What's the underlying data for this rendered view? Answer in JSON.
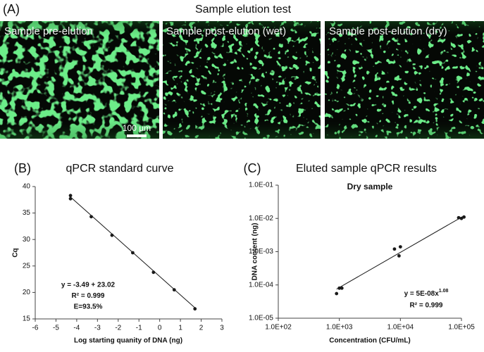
{
  "panel_a": {
    "label": "(A)",
    "title": "Sample elution test",
    "images": [
      "Sample pre-elution",
      "Sample post-elution (wet)",
      "Sample post-elution (dry)"
    ],
    "scale_bar": "100 µm"
  },
  "chart_data": [
    {
      "type": "scatter",
      "panel_label": "(B)",
      "title": "qPCR standard curve",
      "xlabel": "Log starting quanity of DNA (ng)",
      "ylabel": "Cq",
      "x": [
        -4.3,
        -4.3,
        -3.3,
        -2.3,
        -1.3,
        -0.3,
        0.7,
        1.7
      ],
      "values": [
        38.3,
        37.7,
        34.3,
        30.8,
        27.5,
        23.8,
        20.5,
        16.9
      ],
      "color": "#1a1a1a",
      "fit": {
        "x": [
          -4.3,
          1.7
        ],
        "values": [
          38.03,
          17.09
        ]
      },
      "xlim": [
        -6,
        3
      ],
      "xticks": [
        -6,
        -5,
        -4,
        -3,
        -2,
        -1,
        0,
        1,
        2,
        3
      ],
      "ylim": [
        15,
        40
      ],
      "yticks": [
        15,
        20,
        25,
        30,
        35,
        40
      ],
      "log_x": false,
      "log_y": false,
      "grid": false,
      "annotations": [
        "y = -3.49 + 23.02",
        "R² = 0.999",
        "E=93.5%"
      ]
    },
    {
      "type": "scatter",
      "panel_label": "(C)",
      "title": "Eluted sample qPCR results",
      "subtitle": "Dry sample",
      "xlabel": "Concentration (CFU/mL)",
      "ylabel": "DNA content (ng)",
      "x": [
        900,
        1000,
        1100,
        8000,
        9500,
        10000,
        90000,
        100000,
        110000
      ],
      "values": [
        5.5e-05,
        8e-05,
        8e-05,
        0.0012,
        0.00075,
        0.0014,
        0.0105,
        0.01,
        0.011
      ],
      "color": "#1a1a1a",
      "fit": {
        "x": [
          900,
          110000
        ],
        "values": [
          7.5e-05,
          0.012
        ]
      },
      "xlim": [
        100,
        100000
      ],
      "xticks": [
        {
          "value": 100,
          "label": "1.0E+02"
        },
        {
          "value": 1000,
          "label": "1.0E+03"
        },
        {
          "value": 10000,
          "label": "1.0E+04"
        },
        {
          "value": 100000,
          "label": "1.0E+05"
        }
      ],
      "ylim": [
        1e-05,
        0.1
      ],
      "yticks": [
        {
          "value": 1e-05,
          "label": "1.0E-05"
        },
        {
          "value": 0.0001,
          "label": "1.0E-04"
        },
        {
          "value": 0.001,
          "label": "1.0E-03"
        },
        {
          "value": 0.01,
          "label": "1.0E-02"
        },
        {
          "value": 0.1,
          "label": "1.0E-01"
        }
      ],
      "log_x": true,
      "log_y": true,
      "grid": false,
      "equation": {
        "base": "y = 5E-08x",
        "exponent": "1.08"
      },
      "annotations": [
        "R² = 0.999"
      ]
    }
  ]
}
